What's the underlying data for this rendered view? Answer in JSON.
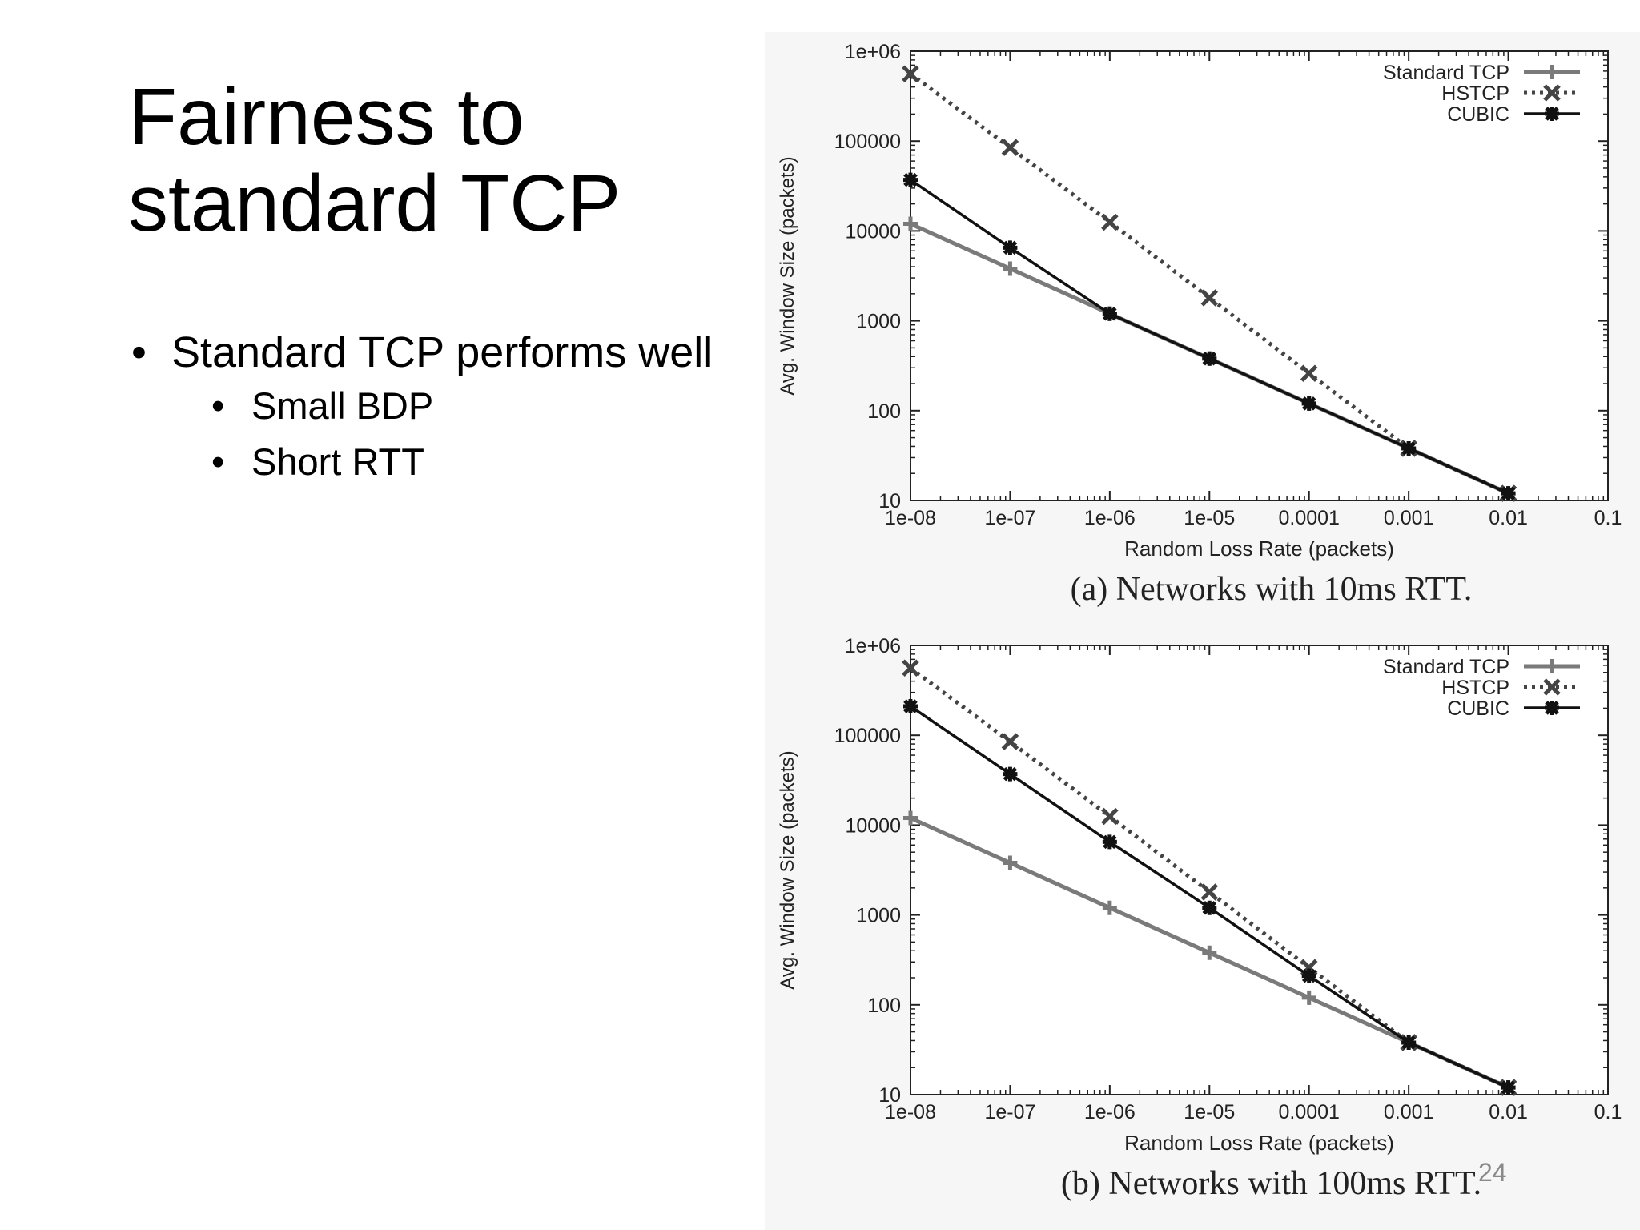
{
  "slide": {
    "title_lines": [
      "Fairness to",
      "standard TCP"
    ],
    "bullets": [
      {
        "text": "Standard TCP performs well",
        "sub": [
          "Small BDP",
          "Short RTT"
        ]
      }
    ],
    "page_number": "24"
  },
  "colors": {
    "standard_tcp": "#7a7a7a",
    "hstcp": "#444444",
    "cubic": "#111111",
    "panel_background": "#f6f6f6"
  },
  "chart_data": [
    {
      "type": "line",
      "title": "",
      "caption": "(a) Networks with 10ms RTT.",
      "xlabel": "Random Loss Rate (packets)",
      "ylabel": "Avg. Window Size (packets)",
      "x_scale": "log",
      "y_scale": "log",
      "xlim": [
        1e-08,
        0.1
      ],
      "ylim": [
        10,
        1000000
      ],
      "x_ticks": [
        "1e-08",
        "1e-07",
        "1e-06",
        "1e-05",
        "0.0001",
        "0.001",
        "0.01",
        "0.1"
      ],
      "y_ticks": [
        "10",
        "100",
        "1000",
        "10000",
        "100000",
        "1e+06"
      ],
      "x": [
        1e-08,
        1e-07,
        1e-06,
        1e-05,
        0.0001,
        0.001,
        0.01
      ],
      "grid": false,
      "legend_position": "top-right",
      "series": [
        {
          "name": "Standard TCP",
          "style": "solid",
          "marker": "plus",
          "values": [
            12000,
            3800,
            1200,
            380,
            120,
            38,
            12
          ]
        },
        {
          "name": "HSTCP",
          "style": "dotted",
          "marker": "x",
          "values": [
            560000,
            85000,
            12500,
            1800,
            260,
            38,
            12
          ]
        },
        {
          "name": "CUBIC",
          "style": "solid",
          "marker": "star",
          "values": [
            37000,
            6500,
            1200,
            380,
            120,
            38,
            12
          ]
        }
      ]
    },
    {
      "type": "line",
      "title": "",
      "caption": "(b) Networks with 100ms RTT.",
      "xlabel": "Random Loss Rate (packets)",
      "ylabel": "Avg. Window Size (packets)",
      "x_scale": "log",
      "y_scale": "log",
      "xlim": [
        1e-08,
        0.1
      ],
      "ylim": [
        10,
        1000000
      ],
      "x_ticks": [
        "1e-08",
        "1e-07",
        "1e-06",
        "1e-05",
        "0.0001",
        "0.001",
        "0.01",
        "0.1"
      ],
      "y_ticks": [
        "10",
        "100",
        "1000",
        "10000",
        "100000",
        "1e+06"
      ],
      "x": [
        1e-08,
        1e-07,
        1e-06,
        1e-05,
        0.0001,
        0.001,
        0.01
      ],
      "grid": false,
      "legend_position": "top-right",
      "series": [
        {
          "name": "Standard TCP",
          "style": "solid",
          "marker": "plus",
          "values": [
            12000,
            3800,
            1200,
            380,
            120,
            38,
            12
          ]
        },
        {
          "name": "HSTCP",
          "style": "dotted",
          "marker": "x",
          "values": [
            560000,
            85000,
            12500,
            1800,
            260,
            38,
            12
          ]
        },
        {
          "name": "CUBIC",
          "style": "solid",
          "marker": "star",
          "values": [
            210000,
            37000,
            6500,
            1200,
            210,
            38,
            12
          ]
        }
      ]
    }
  ]
}
